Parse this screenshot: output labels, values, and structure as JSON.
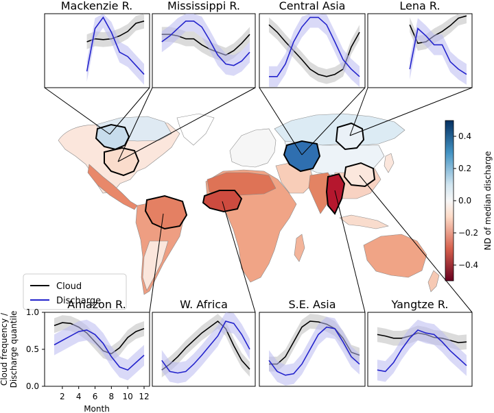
{
  "colors": {
    "cloud": "#000000",
    "discharge": "#2222cc",
    "cloud_band": "#bdbdbd",
    "discharge_band": "#b9b9f0",
    "scale_low": "#67001f",
    "scale_mid": "#f7f7f7",
    "scale_high": "#053061"
  },
  "legend": {
    "cloud": "Cloud",
    "discharge": "Discharge"
  },
  "colorbar": {
    "label": "ND of median discharge",
    "ticks": [
      "0.4",
      "0.2",
      "0.0",
      "−0.2",
      "−0.4"
    ],
    "range": [
      -0.5,
      0.5
    ]
  },
  "axes": {
    "ylabel_line1": "Cloud frequency /",
    "ylabel_line2": "Discharge quantile",
    "xlabel": "Month",
    "yticks": [
      "1.0",
      "0.5",
      "0.0"
    ],
    "xticks": [
      "2",
      "4",
      "6",
      "8",
      "10",
      "12"
    ]
  },
  "map": {
    "regions": [
      {
        "name": "Mackenzie R.",
        "nd": 0.35
      },
      {
        "name": "Mississippi R.",
        "nd": -0.05
      },
      {
        "name": "Central Asia",
        "nd": 0.45
      },
      {
        "name": "Lena R.",
        "nd": 0.1
      },
      {
        "name": "Amazon R.",
        "nd": -0.15
      },
      {
        "name": "W. Africa",
        "nd": -0.3
      },
      {
        "name": "S.E. Asia",
        "nd": -0.45
      },
      {
        "name": "Yangtze R.",
        "nd": -0.1
      }
    ]
  },
  "chart_data": [
    {
      "type": "line",
      "title": "Mackenzie R.",
      "x": [
        5,
        6,
        7,
        8,
        9,
        10,
        11,
        12
      ],
      "ylim": [
        0,
        1
      ],
      "series": [
        {
          "name": "Cloud",
          "values": [
            0.62,
            0.66,
            0.65,
            0.66,
            0.7,
            0.76,
            0.87,
            0.9
          ]
        },
        {
          "name": "Discharge",
          "values": [
            0.22,
            0.8,
            0.95,
            0.75,
            0.48,
            0.42,
            0.3,
            0.18
          ]
        }
      ]
    },
    {
      "type": "line",
      "title": "Mississippi R.",
      "x": [
        1,
        2,
        3,
        4,
        5,
        6,
        7,
        8,
        9,
        10,
        11,
        12
      ],
      "ylim": [
        0,
        1
      ],
      "series": [
        {
          "name": "Cloud",
          "values": [
            0.72,
            0.72,
            0.7,
            0.66,
            0.66,
            0.58,
            0.52,
            0.48,
            0.44,
            0.5,
            0.6,
            0.72
          ]
        },
        {
          "name": "Discharge",
          "values": [
            0.62,
            0.7,
            0.8,
            0.9,
            0.9,
            0.82,
            0.64,
            0.44,
            0.32,
            0.3,
            0.36,
            0.48
          ]
        }
      ]
    },
    {
      "type": "line",
      "title": "Central Asia",
      "x": [
        1,
        2,
        3,
        4,
        5,
        6,
        7,
        8,
        9,
        10,
        11,
        12
      ],
      "ylim": [
        0,
        1
      ],
      "series": [
        {
          "name": "Cloud",
          "values": [
            0.85,
            0.75,
            0.62,
            0.5,
            0.38,
            0.25,
            0.18,
            0.15,
            0.18,
            0.25,
            0.55,
            0.75
          ]
        },
        {
          "name": "Discharge",
          "values": [
            0.15,
            0.15,
            0.32,
            0.62,
            0.82,
            0.95,
            0.95,
            0.85,
            0.62,
            0.38,
            0.25,
            0.15
          ]
        }
      ]
    },
    {
      "type": "line",
      "title": "Lena R.",
      "x": [
        5,
        6,
        7,
        8,
        9,
        10,
        11,
        12
      ],
      "ylim": [
        0,
        1
      ],
      "series": [
        {
          "name": "Cloud",
          "values": [
            0.85,
            0.6,
            0.62,
            0.7,
            0.76,
            0.84,
            0.94,
            0.97
          ]
        },
        {
          "name": "Discharge",
          "values": [
            0.25,
            0.8,
            0.7,
            0.58,
            0.58,
            0.35,
            0.25,
            0.18
          ]
        }
      ]
    },
    {
      "type": "line",
      "title": "Amazon R.",
      "x": [
        1,
        2,
        3,
        4,
        5,
        6,
        7,
        8,
        9,
        10,
        11,
        12
      ],
      "ylim": [
        0,
        1
      ],
      "series": [
        {
          "name": "Cloud",
          "values": [
            0.82,
            0.86,
            0.85,
            0.8,
            0.72,
            0.6,
            0.48,
            0.44,
            0.52,
            0.66,
            0.74,
            0.78
          ]
        },
        {
          "name": "Discharge",
          "values": [
            0.56,
            0.62,
            0.68,
            0.74,
            0.76,
            0.7,
            0.58,
            0.4,
            0.26,
            0.22,
            0.32,
            0.42
          ]
        }
      ]
    },
    {
      "type": "line",
      "title": "W. Africa",
      "x": [
        1,
        2,
        3,
        4,
        5,
        6,
        7,
        8,
        9,
        10,
        11,
        12
      ],
      "ylim": [
        0,
        1
      ],
      "series": [
        {
          "name": "Cloud",
          "values": [
            0.22,
            0.3,
            0.4,
            0.52,
            0.62,
            0.72,
            0.8,
            0.88,
            0.78,
            0.55,
            0.35,
            0.23
          ]
        },
        {
          "name": "Discharge",
          "values": [
            0.35,
            0.2,
            0.18,
            0.2,
            0.3,
            0.42,
            0.55,
            0.68,
            0.88,
            0.85,
            0.7,
            0.5
          ]
        }
      ]
    },
    {
      "type": "line",
      "title": "S.E. Asia",
      "x": [
        1,
        2,
        3,
        4,
        5,
        6,
        7,
        8,
        9,
        10,
        11,
        12
      ],
      "ylim": [
        0,
        1
      ],
      "series": [
        {
          "name": "Cloud",
          "values": [
            0.3,
            0.3,
            0.4,
            0.6,
            0.8,
            0.88,
            0.87,
            0.84,
            0.78,
            0.65,
            0.46,
            0.42
          ]
        },
        {
          "name": "Discharge",
          "values": [
            0.35,
            0.2,
            0.15,
            0.17,
            0.3,
            0.5,
            0.7,
            0.8,
            0.78,
            0.6,
            0.4,
            0.3
          ]
        }
      ]
    },
    {
      "type": "line",
      "title": "Yangtze R.",
      "x": [
        1,
        2,
        3,
        4,
        5,
        6,
        7,
        8,
        9,
        10,
        11,
        12
      ],
      "ylim": [
        0,
        1
      ],
      "series": [
        {
          "name": "Cloud",
          "values": [
            0.7,
            0.68,
            0.65,
            0.65,
            0.68,
            0.72,
            0.7,
            0.66,
            0.65,
            0.62,
            0.59,
            0.6
          ]
        },
        {
          "name": "Discharge",
          "values": [
            0.22,
            0.2,
            0.32,
            0.5,
            0.65,
            0.76,
            0.72,
            0.7,
            0.6,
            0.48,
            0.38,
            0.28
          ]
        }
      ]
    }
  ]
}
